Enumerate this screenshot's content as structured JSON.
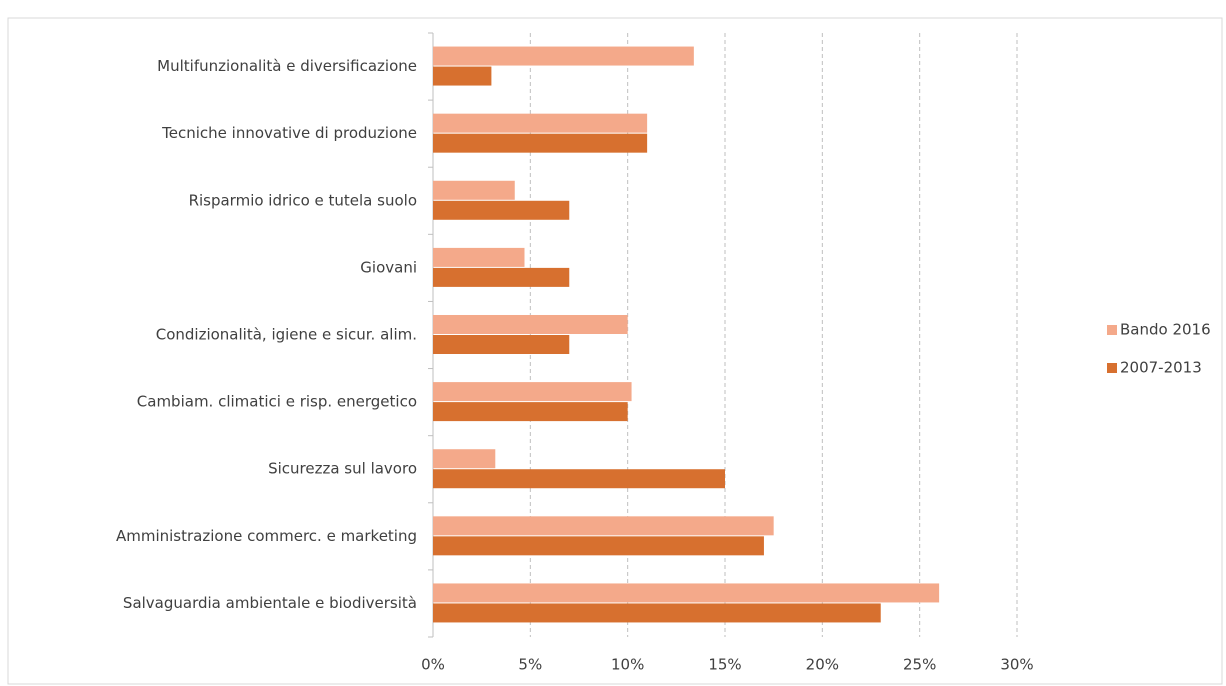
{
  "chart_data": {
    "type": "bar",
    "orientation": "horizontal",
    "categories": [
      "Multifunzionalità e diversificazione",
      "Tecniche innovative di produzione",
      "Risparmio idrico e tutela suolo",
      "Giovani",
      "Condizionalità, igiene e sicur. alim.",
      "Cambiam. climatici e risp. energetico",
      "Sicurezza sul lavoro",
      "Amministrazione commerc. e marketing",
      "Salvaguardia ambientale e biodiversità"
    ],
    "series": [
      {
        "name": "Bando 2016",
        "color": "#f4a98a",
        "values": [
          13.4,
          11.0,
          4.2,
          4.7,
          10.0,
          10.2,
          3.2,
          17.5,
          26.0
        ]
      },
      {
        "name": "2007-2013",
        "color": "#d7702f",
        "values": [
          3.0,
          11.0,
          7.0,
          7.0,
          7.0,
          10.0,
          15.0,
          17.0,
          23.0
        ]
      }
    ],
    "xlim": [
      0,
      30
    ],
    "xticks": [
      {
        "value": 0,
        "label": "0%"
      },
      {
        "value": 5,
        "label": "5%"
      },
      {
        "value": 10,
        "label": "10%"
      },
      {
        "value": 15,
        "label": "15%"
      },
      {
        "value": 20,
        "label": "20%"
      },
      {
        "value": 25,
        "label": "25%"
      },
      {
        "value": 30,
        "label": "30%"
      }
    ],
    "grid": true,
    "legend": "right"
  }
}
